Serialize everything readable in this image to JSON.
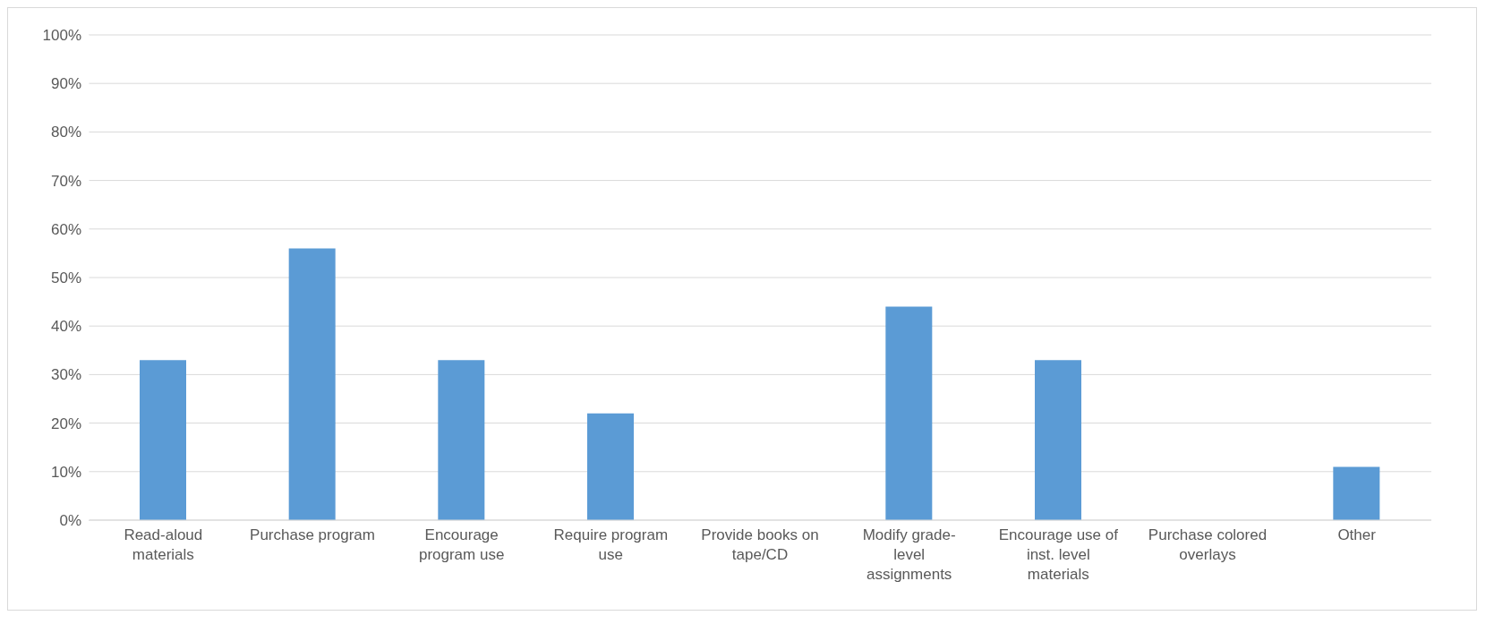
{
  "chart_data": {
    "type": "bar",
    "categories": [
      "Read-aloud materials",
      "Purchase program",
      "Encourage program use",
      "Require program use",
      "Provide books on tape/CD",
      "Modify grade-level assignments",
      "Encourage use of inst. level materials",
      "Purchase colored overlays",
      "Other"
    ],
    "values": [
      33,
      56,
      33,
      22,
      0,
      44,
      33,
      0,
      11
    ],
    "color": "#5b9bd5",
    "ylim": [
      0,
      100
    ],
    "yticks": [
      {
        "value": 0,
        "label": "0%"
      },
      {
        "value": 10,
        "label": "10%"
      },
      {
        "value": 20,
        "label": "20%"
      },
      {
        "value": 30,
        "label": "30%"
      },
      {
        "value": 40,
        "label": "40%"
      },
      {
        "value": 50,
        "label": "50%"
      },
      {
        "value": 60,
        "label": "60%"
      },
      {
        "value": 70,
        "label": "70%"
      },
      {
        "value": 80,
        "label": "80%"
      },
      {
        "value": 90,
        "label": "90%"
      },
      {
        "value": 100,
        "label": "100%"
      }
    ],
    "grid": "y"
  }
}
